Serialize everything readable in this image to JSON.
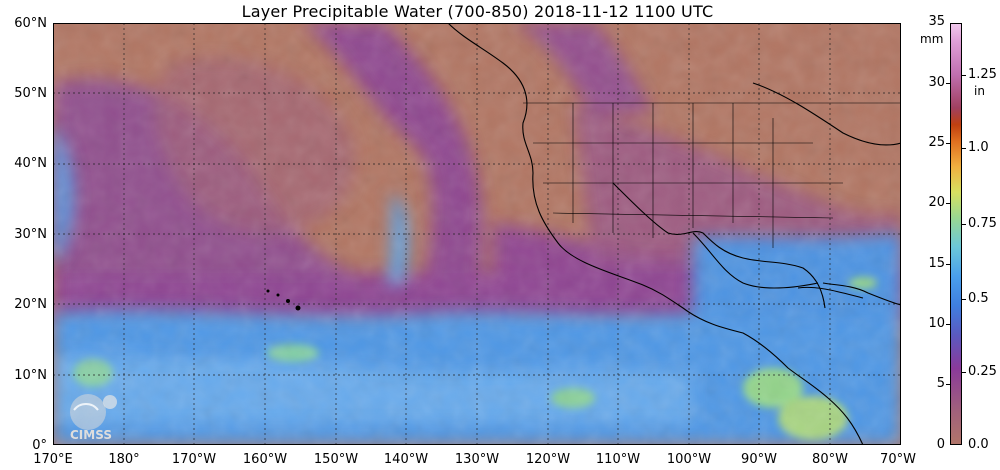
{
  "title": "Layer Precipitable Water (700-850)  2018-11-12 1100 UTC",
  "lat_labels": [
    "60°N",
    "50°N",
    "40°N",
    "30°N",
    "20°N",
    "10°N",
    "0°"
  ],
  "lon_labels": [
    "170°E",
    "180°",
    "170°W",
    "160°W",
    "150°W",
    "140°W",
    "130°W",
    "120°W",
    "110°W",
    "100°W",
    "90°W",
    "80°W",
    "70°W"
  ],
  "colorbar": {
    "mm_unit": "mm",
    "in_unit": "in",
    "mm_ticks": [
      "35",
      "30",
      "25",
      "20",
      "15",
      "10",
      "5",
      "0"
    ],
    "in_ticks": [
      "1.25",
      "1.0",
      "0.75",
      "0.5",
      "0.25",
      "0.0"
    ]
  },
  "logo_text": "CIMSS",
  "colors": {
    "dry": "#b07060",
    "moist_purple": "#8a3a9a",
    "moist_blue": "#4a9be8",
    "wet_green": "#9be070"
  }
}
